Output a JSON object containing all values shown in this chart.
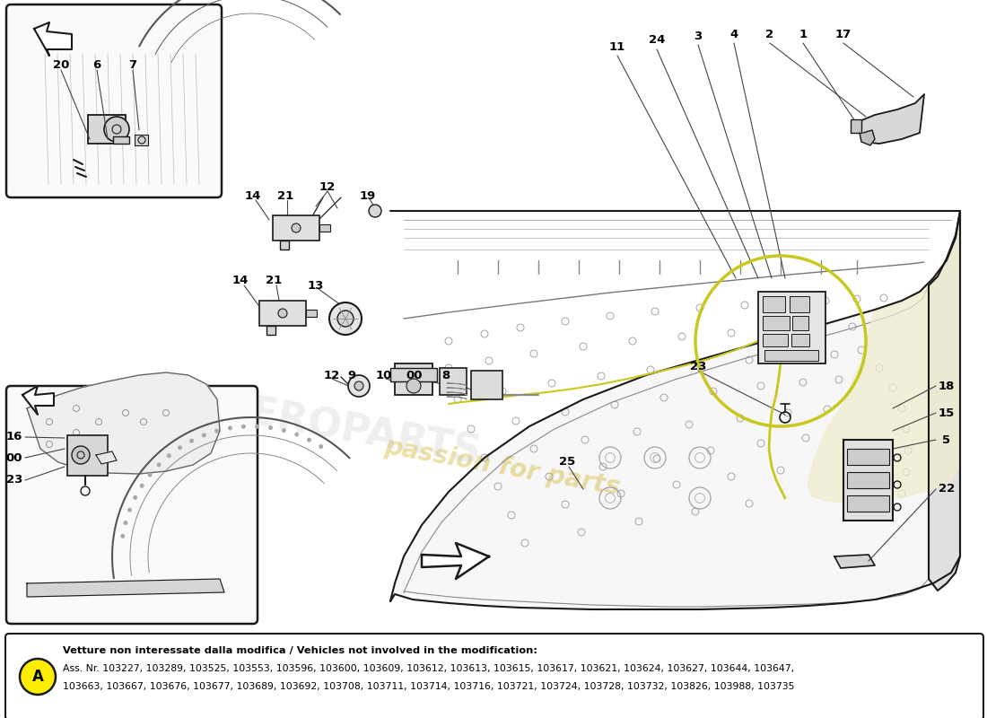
{
  "bg_color": "#ffffff",
  "note_title": "Vetture non interessate dalla modifica / Vehicles not involved in the modification:",
  "note_line1": "Ass. Nr. 103227, 103289, 103525, 103553, 103596, 103600, 103609, 103612, 103613, 103615, 103617, 103621, 103624, 103627, 103644, 103647,",
  "note_line2": "103663, 103667, 103676, 103677, 103689, 103692, 103708, 103711, 103714, 103716, 103721, 103724, 103728, 103732, 103826, 103988, 103735",
  "label_A": "A",
  "line_color": "#1a1a1a",
  "fill_light": "#f0f0f0",
  "fill_mid": "#d8d8d8",
  "yellow_fill": "#e8e080",
  "cable_color": "#c8c820",
  "watermark_color": "#c8a800"
}
